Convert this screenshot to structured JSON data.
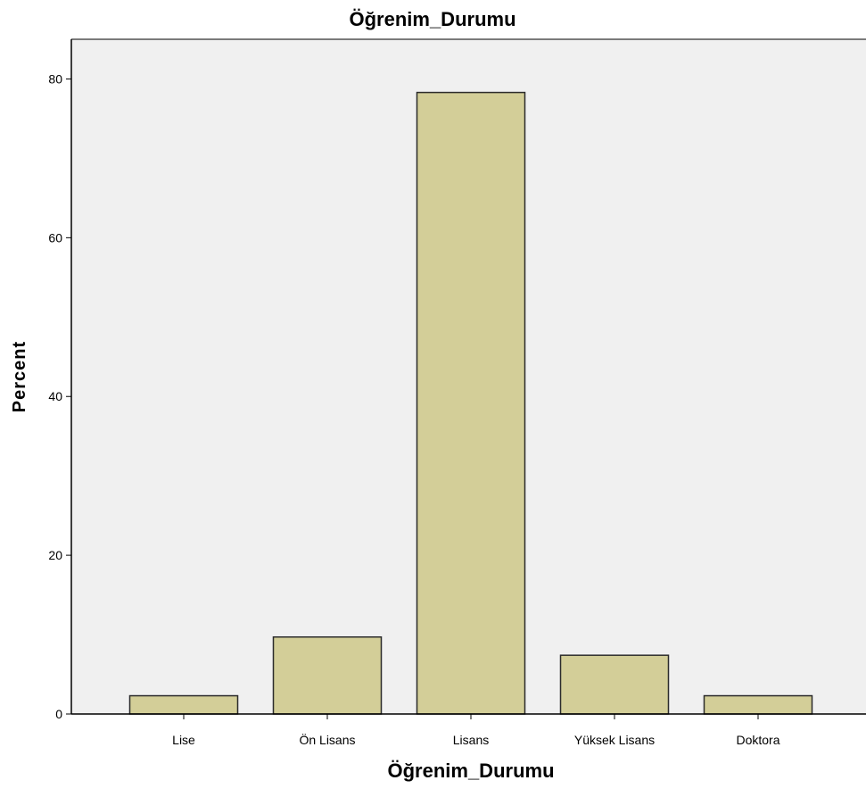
{
  "chart_data": {
    "type": "bar",
    "title": "Öğrenim_Durumu",
    "xlabel": "Öğrenim_Durumu",
    "ylabel": "Percent",
    "categories": [
      "Lise",
      "Ön Lisans",
      "Lisans",
      "Yüksek Lisans",
      "Doktora"
    ],
    "values": [
      2.3,
      9.7,
      78.3,
      7.4,
      2.3
    ],
    "ylim": [
      0,
      85
    ],
    "yticks": [
      0,
      20,
      40,
      60,
      80
    ],
    "grid": false,
    "legend": "none",
    "colors": {
      "bar_fill": "#d3ce98",
      "bar_stroke": "#2b2b2b",
      "plot_background": "#f0f0f0",
      "axis": "#000000"
    }
  }
}
